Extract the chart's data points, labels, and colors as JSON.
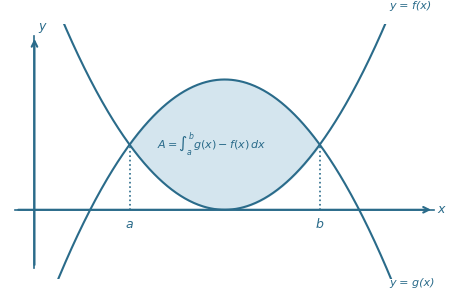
{
  "bg_color": "#ffffff",
  "curve_color": "#2a6b8a",
  "fill_color": "#b8d4e3",
  "fill_alpha": 0.6,
  "axis_color": "#2a6b8a",
  "text_color": "#2a6b8a",
  "a_val": 1.5,
  "b_val": 4.5,
  "label_fx": "y = f(x)",
  "label_gx": "y = g(x)",
  "label_a": "a",
  "label_b": "b",
  "label_x": "x",
  "label_y": "y",
  "xlim": [
    -0.5,
    6.5
  ],
  "ylim": [
    -1.2,
    3.2
  ],
  "x_axis_y": 0.0
}
